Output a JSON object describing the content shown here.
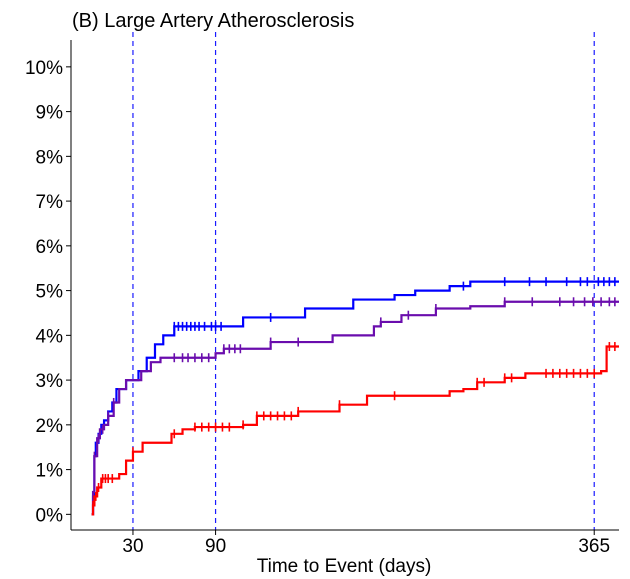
{
  "chart_data": {
    "type": "line",
    "subtype": "step (cumulative incidence / Kaplan-Meier)",
    "title": "(B) Large Artery Atherosclerosis",
    "xlabel": "Time to Event (days)",
    "ylabel": "",
    "xlim": [
      -15,
      383
    ],
    "ylim": [
      -0.35,
      10.6
    ],
    "x_ticks": [
      30,
      90,
      365
    ],
    "x_tick_labels": [
      "30",
      "90",
      "365"
    ],
    "y_ticks": [
      0,
      1,
      2,
      3,
      4,
      5,
      6,
      7,
      8,
      9,
      10
    ],
    "y_tick_labels": [
      "0%",
      "1%",
      "2%",
      "3%",
      "4%",
      "5%",
      "6%",
      "7%",
      "8%",
      "9%",
      "10%"
    ],
    "grid": false,
    "legend": "none",
    "reference_lines": {
      "x": [
        30,
        90,
        365
      ],
      "color": "#1a1aff",
      "style": "dashed"
    },
    "series": [
      {
        "color": "#0000ff",
        "x": [
          0,
          1,
          2,
          3,
          5,
          7,
          9,
          12,
          15,
          18,
          21,
          25,
          30,
          34,
          40,
          46,
          52,
          60,
          66,
          75,
          90,
          110,
          130,
          155,
          175,
          190,
          205,
          220,
          235,
          245,
          260,
          275,
          300,
          325,
          350,
          365,
          383
        ],
        "y": [
          0,
          0.4,
          1.3,
          1.6,
          1.8,
          2.0,
          2.1,
          2.3,
          2.5,
          2.8,
          2.8,
          3.0,
          3.0,
          3.2,
          3.5,
          3.8,
          4.0,
          4.2,
          4.2,
          4.2,
          4.2,
          4.4,
          4.4,
          4.6,
          4.6,
          4.8,
          4.8,
          4.9,
          5.0,
          5.0,
          5.1,
          5.2,
          5.2,
          5.2,
          5.2,
          5.2,
          5.2
        ],
        "censored_x": [
          60,
          63,
          66,
          69,
          72,
          75,
          78,
          82,
          87,
          90,
          94,
          130,
          270,
          300,
          318,
          330,
          345,
          355,
          360,
          368,
          372,
          376,
          380
        ]
      },
      {
        "color": "#6a0dad",
        "x": [
          0,
          1,
          2,
          4,
          6,
          9,
          12,
          16,
          20,
          25,
          30,
          36,
          43,
          50,
          58,
          66,
          75,
          90,
          96,
          110,
          130,
          155,
          175,
          205,
          210,
          225,
          240,
          250,
          260,
          275,
          300,
          330,
          365,
          383
        ],
        "y": [
          0,
          0.5,
          1.3,
          1.7,
          1.9,
          2.0,
          2.2,
          2.5,
          2.8,
          3.0,
          3.0,
          3.2,
          3.4,
          3.5,
          3.5,
          3.5,
          3.5,
          3.6,
          3.7,
          3.7,
          3.85,
          3.85,
          4.0,
          4.2,
          4.3,
          4.45,
          4.45,
          4.6,
          4.6,
          4.65,
          4.75,
          4.75,
          4.75,
          4.75
        ],
        "censored_x": [
          2,
          5,
          8,
          12,
          16,
          60,
          66,
          70,
          75,
          80,
          85,
          96,
          100,
          104,
          108,
          130,
          150,
          210,
          230,
          250,
          300,
          320,
          340,
          350,
          358,
          364,
          370,
          376,
          380
        ]
      },
      {
        "color": "#ff0000",
        "x": [
          0,
          1,
          2,
          4,
          7,
          10,
          13,
          20,
          25,
          30,
          37,
          45,
          58,
          66,
          75,
          90,
          110,
          120,
          150,
          170,
          180,
          200,
          220,
          235,
          260,
          270,
          280,
          300,
          315,
          320,
          330,
          365,
          370,
          374,
          383
        ],
        "y": [
          0,
          0.2,
          0.4,
          0.6,
          0.8,
          0.8,
          0.8,
          0.9,
          1.2,
          1.4,
          1.6,
          1.6,
          1.8,
          1.9,
          1.95,
          1.95,
          2.0,
          2.2,
          2.3,
          2.3,
          2.45,
          2.65,
          2.65,
          2.65,
          2.75,
          2.8,
          2.95,
          3.05,
          3.15,
          3.15,
          3.15,
          3.15,
          3.2,
          3.75,
          3.75
        ],
        "censored_x": [
          1,
          3,
          5,
          8,
          10,
          12,
          15,
          30,
          60,
          75,
          80,
          85,
          90,
          95,
          100,
          110,
          120,
          125,
          130,
          135,
          140,
          145,
          150,
          180,
          220,
          280,
          285,
          300,
          305,
          330,
          335,
          340,
          345,
          350,
          355,
          360,
          365,
          376,
          380
        ]
      }
    ]
  }
}
